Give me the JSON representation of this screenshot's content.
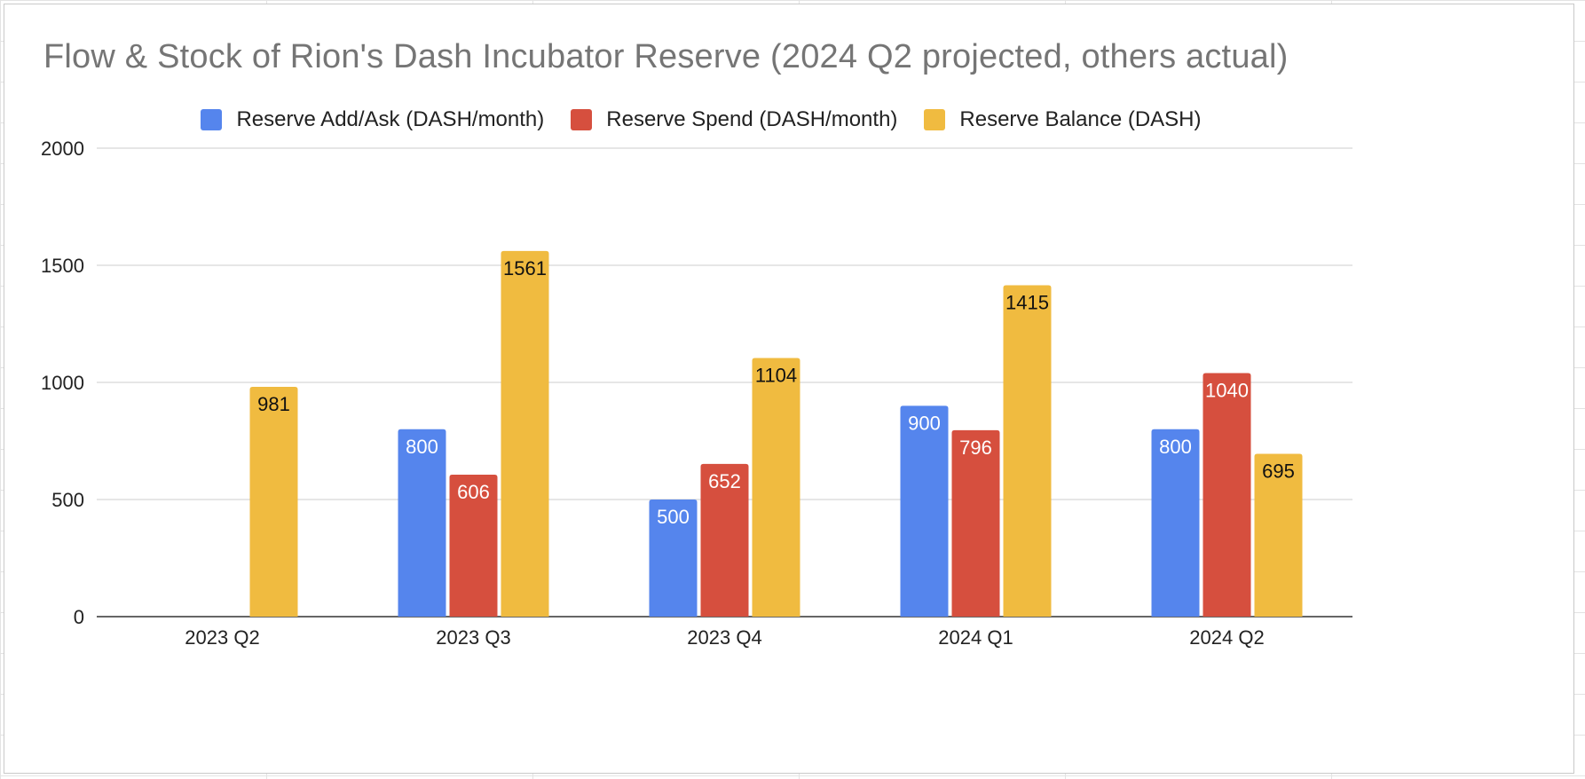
{
  "chart_data": {
    "type": "bar",
    "title": "Flow & Stock of Rion's Dash Incubator Reserve (2024 Q2 projected, others actual)",
    "categories": [
      "2023 Q2",
      "2023 Q3",
      "2023 Q4",
      "2024 Q1",
      "2024 Q2"
    ],
    "series": [
      {
        "name": "Reserve Add/Ask (DASH/month)",
        "color": "#5585ed",
        "label_color": "#ffffff",
        "values": [
          null,
          800,
          500,
          900,
          800
        ]
      },
      {
        "name": "Reserve Spend (DASH/month)",
        "color": "#d64f3e",
        "label_color": "#ffffff",
        "values": [
          null,
          606,
          652,
          796,
          1040
        ]
      },
      {
        "name": "Reserve Balance (DASH)",
        "color": "#f0bb40",
        "label_color": "#111111",
        "values": [
          981,
          1561,
          1104,
          1415,
          695
        ]
      }
    ],
    "ylim": [
      0,
      2000
    ],
    "yticks": [
      0,
      500,
      1000,
      1500,
      2000
    ],
    "xlabel": "",
    "ylabel": "",
    "grid": true,
    "legend_position": "top"
  }
}
